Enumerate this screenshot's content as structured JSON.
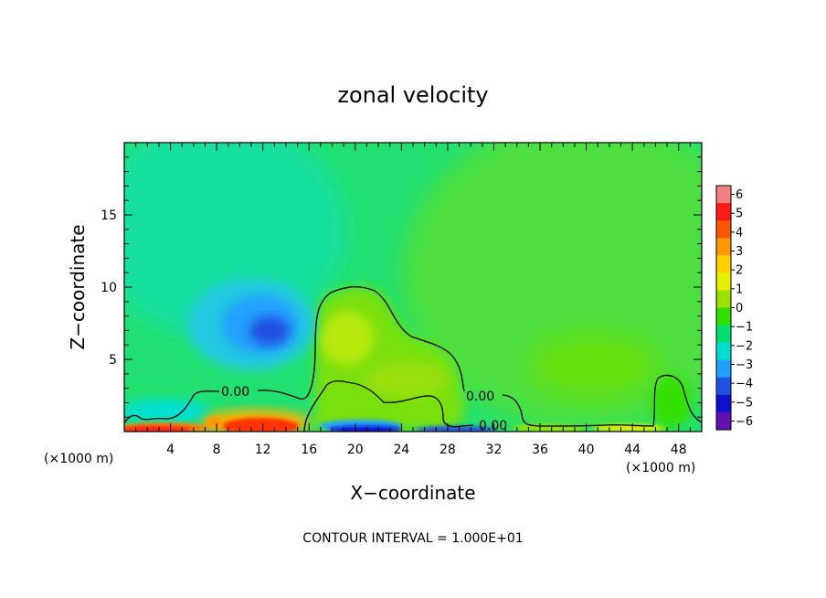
{
  "chart_data": {
    "type": "heatmap",
    "title": "zonal velocity",
    "xlabel": "X−coordinate",
    "ylabel": "Z−coordinate",
    "x_units": "(×1000 m)",
    "z_units": "(×1000 m)",
    "xlim": [
      0,
      50
    ],
    "ylim": [
      0,
      20
    ],
    "x_ticks": [
      "4",
      "8",
      "12",
      "16",
      "20",
      "24",
      "28",
      "32",
      "36",
      "40",
      "44",
      "48"
    ],
    "y_ticks": [
      "5",
      "10",
      "15"
    ],
    "colorbar": {
      "range": [
        -6,
        6
      ],
      "labels": [
        "6",
        "5",
        "4",
        "3",
        "2",
        "1",
        "0",
        "−1",
        "−2",
        "−3",
        "−4",
        "−5",
        "−6"
      ],
      "colors": [
        "#f08080",
        "#ff1a1a",
        "#ff5500",
        "#ff9900",
        "#ffd000",
        "#e6ee00",
        "#9be000",
        "#30e000",
        "#00e070",
        "#00e0d0",
        "#20a0ff",
        "#2050e0",
        "#1010d0",
        "#6010b0"
      ]
    },
    "contour_labels": [
      "0.00",
      "0.00",
      "0.00"
    ],
    "footer": "CONTOUR INTERVAL = 1.000E+01",
    "features": [
      {
        "x": 18.5,
        "z": 6.5,
        "u": 1.2
      },
      {
        "x": 11,
        "z": 7.5,
        "u": -3.2
      },
      {
        "x": 12,
        "z": 0.6,
        "u": 4.2
      },
      {
        "x": 3,
        "z": 0.3,
        "u": 4.6
      },
      {
        "x": 23,
        "z": 0.2,
        "u": -4.5
      },
      {
        "x": 40,
        "z": 4.5,
        "u": 0.5
      },
      {
        "x": 13,
        "z": 14,
        "u": -1.2
      }
    ]
  }
}
